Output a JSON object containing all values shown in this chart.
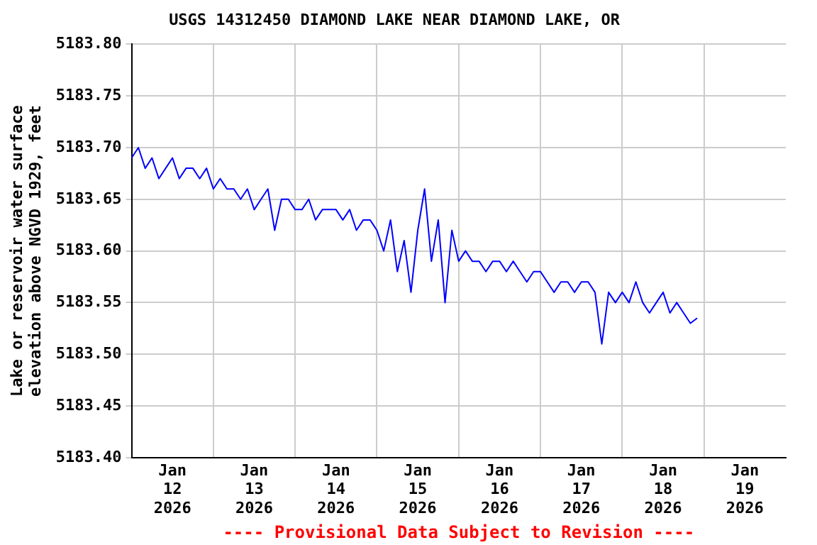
{
  "chart_data": {
    "type": "line",
    "title": "USGS 14312450 DIAMOND LAKE NEAR DIAMOND LAKE, OR",
    "ylabel": "Lake or reservoir water surface\nelevation above NGVD 1929, feet",
    "annotations": [
      "---- Provisional Data Subject to Revision ----"
    ],
    "x": [
      "2026-01-12T00:00",
      "2026-01-12T02:00",
      "2026-01-12T04:00",
      "2026-01-12T06:00",
      "2026-01-12T08:00",
      "2026-01-12T10:00",
      "2026-01-12T12:00",
      "2026-01-12T14:00",
      "2026-01-12T16:00",
      "2026-01-12T18:00",
      "2026-01-12T20:00",
      "2026-01-12T22:00",
      "2026-01-13T00:00",
      "2026-01-13T02:00",
      "2026-01-13T04:00",
      "2026-01-13T06:00",
      "2026-01-13T08:00",
      "2026-01-13T10:00",
      "2026-01-13T12:00",
      "2026-01-13T14:00",
      "2026-01-13T16:00",
      "2026-01-13T18:00",
      "2026-01-13T20:00",
      "2026-01-13T22:00",
      "2026-01-14T00:00",
      "2026-01-14T02:00",
      "2026-01-14T04:00",
      "2026-01-14T06:00",
      "2026-01-14T08:00",
      "2026-01-14T10:00",
      "2026-01-14T12:00",
      "2026-01-14T14:00",
      "2026-01-14T16:00",
      "2026-01-14T18:00",
      "2026-01-14T20:00",
      "2026-01-14T22:00",
      "2026-01-15T00:00",
      "2026-01-15T02:00",
      "2026-01-15T04:00",
      "2026-01-15T06:00",
      "2026-01-15T08:00",
      "2026-01-15T10:00",
      "2026-01-15T12:00",
      "2026-01-15T14:00",
      "2026-01-15T16:00",
      "2026-01-15T18:00",
      "2026-01-15T20:00",
      "2026-01-15T22:00",
      "2026-01-16T00:00",
      "2026-01-16T02:00",
      "2026-01-16T04:00",
      "2026-01-16T06:00",
      "2026-01-16T08:00",
      "2026-01-16T10:00",
      "2026-01-16T12:00",
      "2026-01-16T14:00",
      "2026-01-16T16:00",
      "2026-01-16T18:00",
      "2026-01-16T20:00",
      "2026-01-16T22:00",
      "2026-01-17T00:00",
      "2026-01-17T02:00",
      "2026-01-17T04:00",
      "2026-01-17T06:00",
      "2026-01-17T08:00",
      "2026-01-17T10:00",
      "2026-01-17T12:00",
      "2026-01-17T14:00",
      "2026-01-17T16:00",
      "2026-01-17T18:00",
      "2026-01-17T20:00",
      "2026-01-17T22:00",
      "2026-01-18T00:00",
      "2026-01-18T02:00",
      "2026-01-18T04:00",
      "2026-01-18T06:00",
      "2026-01-18T08:00",
      "2026-01-18T10:00",
      "2026-01-18T12:00",
      "2026-01-18T14:00",
      "2026-01-18T16:00",
      "2026-01-18T18:00",
      "2026-01-18T20:00",
      "2026-01-18T22:00"
    ],
    "series": [
      {
        "color": "#0000ff",
        "values": [
          5183.69,
          5183.7,
          5183.68,
          5183.69,
          5183.67,
          5183.68,
          5183.69,
          5183.67,
          5183.68,
          5183.68,
          5183.67,
          5183.68,
          5183.66,
          5183.67,
          5183.66,
          5183.66,
          5183.65,
          5183.66,
          5183.64,
          5183.65,
          5183.66,
          5183.62,
          5183.65,
          5183.65,
          5183.64,
          5183.64,
          5183.65,
          5183.63,
          5183.64,
          5183.64,
          5183.64,
          5183.63,
          5183.64,
          5183.62,
          5183.63,
          5183.63,
          5183.62,
          5183.6,
          5183.63,
          5183.58,
          5183.61,
          5183.56,
          5183.62,
          5183.66,
          5183.59,
          5183.63,
          5183.55,
          5183.62,
          5183.59,
          5183.6,
          5183.59,
          5183.59,
          5183.58,
          5183.59,
          5183.59,
          5183.58,
          5183.59,
          5183.58,
          5183.57,
          5183.58,
          5183.58,
          5183.57,
          5183.56,
          5183.57,
          5183.57,
          5183.56,
          5183.57,
          5183.57,
          5183.56,
          5183.51,
          5183.56,
          5183.55,
          5183.56,
          5183.55,
          5183.57,
          5183.55,
          5183.54,
          5183.55,
          5183.56,
          5183.54,
          5183.55,
          5183.54,
          5183.53,
          5183.535
        ]
      }
    ],
    "xlim": [
      "2026-01-12T00:00",
      "2026-01-20T00:00"
    ],
    "xticks": [
      {
        "value": "2026-01-12T12:00",
        "label": "Jan\n12\n2026"
      },
      {
        "value": "2026-01-13T00:00",
        "label": null
      },
      {
        "value": "2026-01-13T12:00",
        "label": "Jan\n13\n2026"
      },
      {
        "value": "2026-01-14T00:00",
        "label": null
      },
      {
        "value": "2026-01-14T12:00",
        "label": "Jan\n14\n2026"
      },
      {
        "value": "2026-01-15T00:00",
        "label": null
      },
      {
        "value": "2026-01-15T12:00",
        "label": "Jan\n15\n2026"
      },
      {
        "value": "2026-01-16T00:00",
        "label": null
      },
      {
        "value": "2026-01-16T12:00",
        "label": "Jan\n16\n2026"
      },
      {
        "value": "2026-01-17T00:00",
        "label": null
      },
      {
        "value": "2026-01-17T12:00",
        "label": "Jan\n17\n2026"
      },
      {
        "value": "2026-01-18T00:00",
        "label": null
      },
      {
        "value": "2026-01-18T12:00",
        "label": "Jan\n18\n2026"
      },
      {
        "value": "2026-01-19T00:00",
        "label": null
      },
      {
        "value": "2026-01-19T12:00",
        "label": "Jan\n19\n2026"
      }
    ],
    "ylim": [
      5183.4,
      5183.8
    ],
    "yticks": [
      {
        "value": 5183.4,
        "label": "5183.40"
      },
      {
        "value": 5183.45,
        "label": "5183.45"
      },
      {
        "value": 5183.5,
        "label": "5183.50"
      },
      {
        "value": 5183.55,
        "label": "5183.55"
      },
      {
        "value": 5183.6,
        "label": "5183.60"
      },
      {
        "value": 5183.65,
        "label": "5183.65"
      },
      {
        "value": 5183.7,
        "label": "5183.70"
      },
      {
        "value": 5183.75,
        "label": "5183.75"
      },
      {
        "value": 5183.8,
        "label": "5183.80"
      }
    ],
    "grid": true,
    "legend": false,
    "marker": "none",
    "line_style": "solid"
  }
}
